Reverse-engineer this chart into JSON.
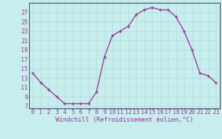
{
  "x": [
    0,
    1,
    2,
    3,
    4,
    5,
    6,
    7,
    8,
    9,
    10,
    11,
    12,
    13,
    14,
    15,
    16,
    17,
    18,
    19,
    20,
    21,
    22,
    23
  ],
  "y": [
    14,
    12,
    10.5,
    9,
    7.5,
    7.5,
    7.5,
    7.5,
    10,
    17.5,
    22,
    23,
    24,
    26.5,
    27.5,
    28,
    27.5,
    27.5,
    26,
    23,
    19,
    14,
    13.5,
    12
  ],
  "line_color": "#993399",
  "marker_color": "#993399",
  "bg_color": "#c8eded",
  "grid_color": "#aadddd",
  "xlabel": "Windchill (Refroidissement éolien,°C)",
  "xlim": [
    -0.5,
    23.5
  ],
  "ylim": [
    6.5,
    29
  ],
  "xticks": [
    0,
    1,
    2,
    3,
    4,
    5,
    6,
    7,
    8,
    9,
    10,
    11,
    12,
    13,
    14,
    15,
    16,
    17,
    18,
    19,
    20,
    21,
    22,
    23
  ],
  "yticks": [
    7,
    9,
    11,
    13,
    15,
    17,
    19,
    21,
    23,
    25,
    27
  ],
  "tick_color": "#993399",
  "label_color": "#993399",
  "font_size_label": 6.5,
  "font_size_tick": 6,
  "line_width": 1.0,
  "marker_size": 2.5
}
